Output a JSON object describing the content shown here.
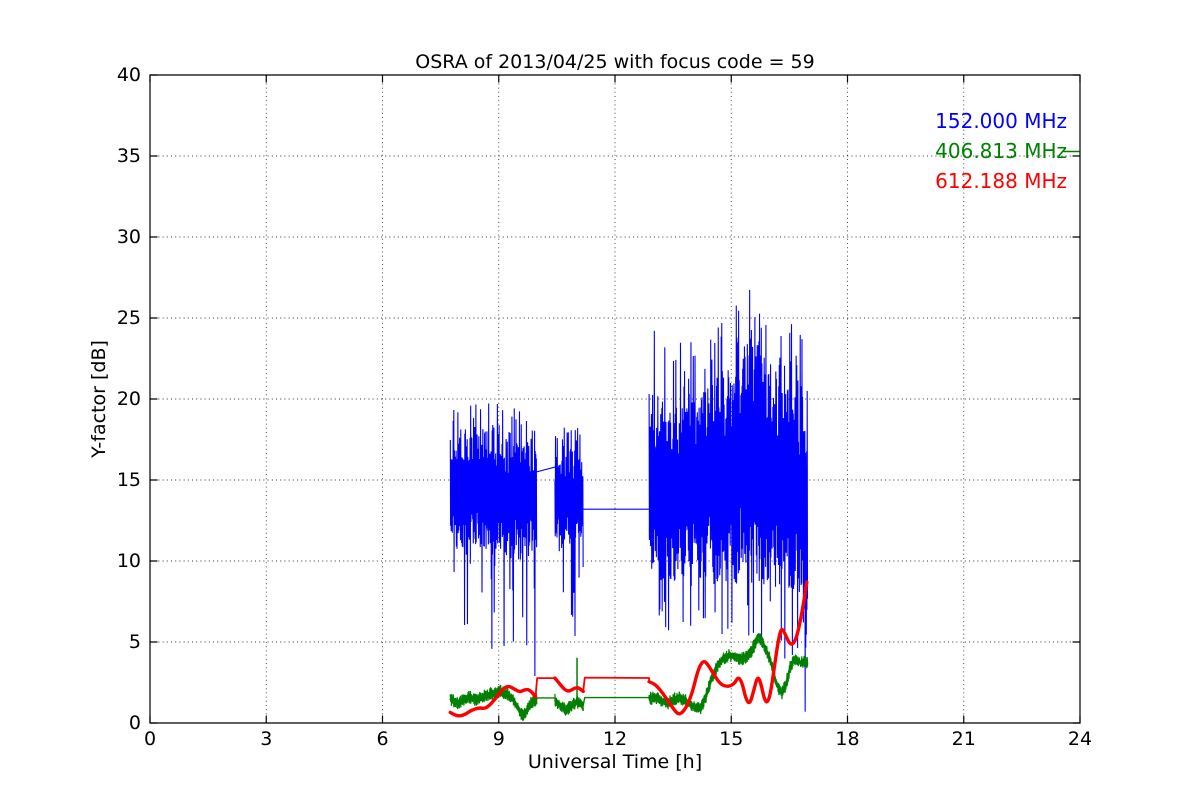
{
  "chart_data": {
    "type": "line",
    "title": "OSRA of 2013/04/25 with focus code = 59",
    "xlabel": "Universal Time [h]",
    "ylabel": "Y-factor [dB]",
    "xlim": [
      0,
      24
    ],
    "ylim": [
      0,
      40
    ],
    "xticks": [
      0,
      3,
      6,
      9,
      12,
      15,
      18,
      21,
      24
    ],
    "yticks": [
      0,
      5,
      10,
      15,
      20,
      25,
      30,
      35,
      40
    ],
    "grid": {
      "style": "dotted",
      "color": "#000000",
      "x_at": [
        3,
        6,
        9,
        12,
        15,
        18,
        21
      ],
      "y_at": [
        5,
        10,
        15,
        20,
        25,
        30,
        35
      ]
    },
    "legend": {
      "position": "upper-right",
      "entries": [
        {
          "label": "152.000 MHz",
          "color": "#0000ff"
        },
        {
          "label": "406.813 MHz",
          "color": "#008000"
        },
        {
          "label": "612.188 MHz",
          "color": "#ff0000"
        }
      ],
      "trailing_dash": {
        "entry_index": 1,
        "visible": true
      }
    },
    "series": [
      {
        "name": "152.000 MHz",
        "color": "#0000ff",
        "style": "noisy-vertical",
        "envelope_note": "samples are [x_hours, band_lo, band_hi, extreme_lo, extreme_hi] in dB",
        "envelope_segments": [
          {
            "samples": [
              [
                7.75,
                11.5,
                17.6,
                9.5,
                19.2
              ],
              [
                7.9,
                10.5,
                18.3,
                5.5,
                20.3
              ],
              [
                8.1,
                10.3,
                18.1,
                5.3,
                19.9
              ],
              [
                8.35,
                10.5,
                18.4,
                6.3,
                20.0
              ],
              [
                8.6,
                10.4,
                18.3,
                6.8,
                19.7
              ],
              [
                8.85,
                10.2,
                18.3,
                3.1,
                20.2
              ],
              [
                9.1,
                10.0,
                18.1,
                2.4,
                20.3
              ],
              [
                9.35,
                10.2,
                17.9,
                2.3,
                19.6
              ],
              [
                9.6,
                10.0,
                17.6,
                2.4,
                19.2
              ],
              [
                9.8,
                10.3,
                17.7,
                2.5,
                19.3
              ],
              [
                9.98,
                10.8,
                17.2,
                3.0,
                18.8
              ]
            ]
          },
          {
            "samples": [
              [
                10.45,
                11.0,
                16.6,
                8.8,
                17.8
              ],
              [
                10.6,
                10.8,
                16.9,
                8.0,
                18.3
              ],
              [
                10.8,
                10.8,
                17.0,
                7.8,
                18.6
              ],
              [
                11.0,
                10.9,
                16.8,
                3.4,
                18.4
              ],
              [
                11.18,
                11.0,
                16.2,
                7.5,
                17.6
              ]
            ]
          },
          {
            "samples": [
              [
                12.88,
                8.5,
                20.5,
                6.0,
                25.2
              ],
              [
                13.1,
                8.6,
                20.5,
                5.8,
                25.0
              ],
              [
                13.35,
                8.6,
                19.2,
                5.5,
                23.2
              ],
              [
                13.6,
                8.8,
                19.6,
                6.0,
                23.8
              ],
              [
                13.85,
                9.0,
                20.2,
                6.2,
                24.2
              ],
              [
                14.1,
                8.7,
                20.8,
                5.5,
                24.8
              ],
              [
                14.35,
                8.8,
                20.6,
                5.2,
                24.3
              ],
              [
                14.6,
                8.5,
                21.4,
                3.9,
                25.0
              ],
              [
                14.85,
                8.6,
                22.0,
                5.5,
                25.2
              ],
              [
                15.1,
                8.5,
                22.3,
                5.2,
                25.8
              ],
              [
                15.35,
                8.5,
                23.8,
                5.2,
                26.8
              ],
              [
                15.55,
                8.5,
                25.2,
                5.5,
                27.5
              ],
              [
                15.75,
                8.4,
                23.6,
                5.0,
                26.4
              ],
              [
                15.95,
                8.3,
                23.0,
                4.8,
                26.2
              ],
              [
                16.15,
                8.0,
                22.2,
                4.5,
                25.0
              ],
              [
                16.35,
                7.8,
                22.4,
                4.0,
                25.2
              ],
              [
                16.55,
                7.4,
                21.8,
                2.5,
                24.8
              ],
              [
                16.75,
                6.8,
                21.4,
                1.2,
                24.2
              ],
              [
                16.9,
                4.5,
                20.5,
                0.6,
                23.5
              ],
              [
                16.97,
                2.0,
                17.5,
                0.3,
                21.5
              ]
            ]
          }
        ],
        "connector_lines": [
          [
            [
              9.98,
              15.5
            ],
            [
              10.45,
              15.8
            ]
          ],
          [
            [
              11.18,
              13.2
            ],
            [
              12.88,
              13.2
            ]
          ]
        ]
      },
      {
        "name": "406.813 MHz",
        "color": "#008000",
        "style": "noisy-band",
        "band_halfwidth": 0.38,
        "band_segments": [
          [
            [
              7.75,
              1.45
            ],
            [
              7.95,
              1.25
            ],
            [
              8.1,
              1.45
            ],
            [
              8.25,
              1.6
            ],
            [
              8.4,
              1.45
            ],
            [
              8.55,
              1.55
            ],
            [
              8.7,
              1.75
            ],
            [
              8.9,
              1.85
            ],
            [
              9.05,
              1.95
            ],
            [
              9.2,
              1.8
            ],
            [
              9.35,
              1.55
            ],
            [
              9.5,
              0.85
            ],
            [
              9.62,
              0.4
            ],
            [
              9.72,
              0.75
            ],
            [
              9.85,
              1.3
            ],
            [
              9.98,
              1.5
            ]
          ],
          [
            [
              10.45,
              1.4
            ],
            [
              10.6,
              1.05
            ],
            [
              10.72,
              0.8
            ],
            [
              10.85,
              1.05
            ],
            [
              11.0,
              1.3
            ],
            [
              11.1,
              1.25
            ],
            [
              11.18,
              1.1
            ]
          ],
          [
            [
              12.88,
              1.5
            ],
            [
              13.05,
              1.55
            ],
            [
              13.2,
              1.4
            ],
            [
              13.35,
              1.25
            ],
            [
              13.5,
              1.45
            ],
            [
              13.65,
              1.6
            ],
            [
              13.8,
              1.4
            ],
            [
              13.95,
              1.15
            ],
            [
              14.1,
              0.95
            ],
            [
              14.2,
              0.9
            ],
            [
              14.35,
              1.7
            ],
            [
              14.5,
              2.8
            ],
            [
              14.65,
              3.6
            ],
            [
              14.8,
              3.95
            ],
            [
              14.95,
              4.15
            ],
            [
              15.1,
              4.1
            ],
            [
              15.25,
              3.95
            ],
            [
              15.4,
              4.05
            ],
            [
              15.55,
              4.6
            ],
            [
              15.7,
              5.35
            ],
            [
              15.8,
              5.0
            ],
            [
              15.9,
              4.5
            ],
            [
              16.0,
              3.9
            ],
            [
              16.1,
              3.0
            ],
            [
              16.2,
              2.2
            ],
            [
              16.3,
              1.85
            ],
            [
              16.4,
              2.3
            ],
            [
              16.5,
              3.3
            ],
            [
              16.6,
              3.95
            ],
            [
              16.7,
              3.85
            ],
            [
              16.8,
              3.7
            ],
            [
              16.9,
              3.75
            ],
            [
              16.97,
              3.7
            ]
          ]
        ],
        "connector_lines": [
          [
            [
              9.98,
              1.5
            ],
            [
              10.02,
              1.55
            ],
            [
              10.45,
              1.55
            ]
          ],
          [
            [
              11.18,
              1.1
            ],
            [
              11.22,
              1.57
            ],
            [
              12.88,
              1.57
            ]
          ]
        ],
        "spikes": [
          [
            11.02,
            1.3,
            4.0
          ]
        ]
      },
      {
        "name": "612.188 MHz",
        "color": "#ff0000",
        "style": "thick-line",
        "line_segments": [
          [
            [
              7.75,
              0.65
            ],
            [
              7.85,
              0.5
            ],
            [
              8.0,
              0.42
            ],
            [
              8.15,
              0.55
            ],
            [
              8.3,
              0.8
            ],
            [
              8.5,
              0.95
            ],
            [
              8.62,
              0.88
            ],
            [
              8.75,
              1.05
            ],
            [
              8.95,
              1.6
            ],
            [
              9.1,
              2.1
            ],
            [
              9.25,
              2.3
            ],
            [
              9.4,
              2.1
            ],
            [
              9.55,
              1.9
            ],
            [
              9.7,
              2.1
            ],
            [
              9.82,
              2.0
            ],
            [
              9.95,
              1.62
            ]
          ],
          [
            [
              10.45,
              2.77
            ],
            [
              10.58,
              2.4
            ],
            [
              10.7,
              2.05
            ],
            [
              10.82,
              1.95
            ],
            [
              10.95,
              2.15
            ],
            [
              11.05,
              2.2
            ],
            [
              11.18,
              1.95
            ]
          ],
          [
            [
              12.88,
              2.55
            ],
            [
              13.0,
              2.45
            ],
            [
              13.15,
              2.1
            ],
            [
              13.3,
              1.6
            ],
            [
              13.5,
              0.9
            ],
            [
              13.62,
              0.55
            ],
            [
              13.72,
              0.6
            ],
            [
              13.85,
              1.0
            ],
            [
              14.0,
              1.9
            ],
            [
              14.1,
              2.9
            ],
            [
              14.2,
              3.6
            ],
            [
              14.3,
              3.85
            ],
            [
              14.4,
              3.6
            ],
            [
              14.55,
              3.0
            ],
            [
              14.7,
              2.45
            ],
            [
              14.85,
              2.25
            ],
            [
              15.0,
              2.3
            ],
            [
              15.1,
              2.5
            ],
            [
              15.18,
              2.85
            ],
            [
              15.28,
              2.5
            ],
            [
              15.38,
              1.45
            ],
            [
              15.48,
              1.15
            ],
            [
              15.58,
              2.0
            ],
            [
              15.68,
              2.9
            ],
            [
              15.76,
              2.5
            ],
            [
              15.86,
              1.4
            ],
            [
              15.94,
              1.25
            ],
            [
              16.02,
              1.9
            ],
            [
              16.12,
              3.6
            ],
            [
              16.22,
              5.2
            ],
            [
              16.3,
              5.9
            ],
            [
              16.4,
              5.45
            ],
            [
              16.5,
              4.9
            ],
            [
              16.6,
              4.85
            ],
            [
              16.7,
              5.4
            ],
            [
              16.8,
              6.5
            ],
            [
              16.88,
              7.6
            ],
            [
              16.95,
              8.7
            ]
          ]
        ],
        "connector_lines": [
          [
            [
              9.95,
              1.62
            ],
            [
              9.99,
              2.77
            ],
            [
              10.45,
              2.77
            ]
          ],
          [
            [
              11.18,
              1.95
            ],
            [
              11.22,
              2.8
            ],
            [
              12.88,
              2.78
            ],
            [
              12.88,
              2.55
            ]
          ]
        ]
      }
    ]
  }
}
